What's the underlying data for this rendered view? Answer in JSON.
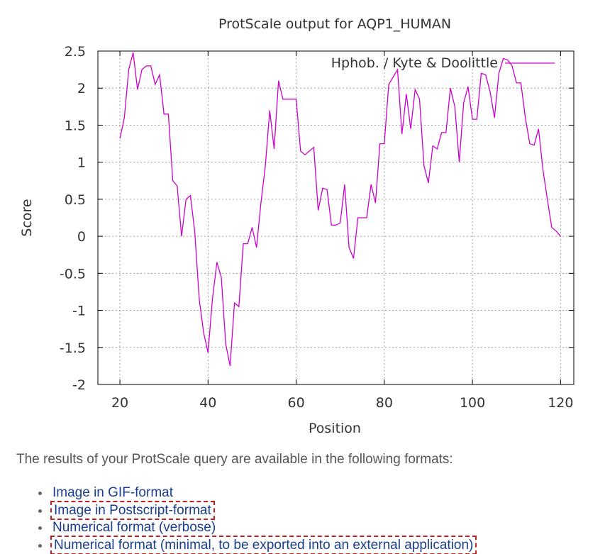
{
  "results": {
    "intro": "The results of your ProtScale query are available in the following formats:",
    "formats": [
      {
        "label": "Image in GIF-format",
        "highlighted": false
      },
      {
        "label": "Image in Postscript-format",
        "highlighted": true
      },
      {
        "label": "Numerical format (verbose)",
        "highlighted": false
      },
      {
        "label": "Numerical format (minimal, to be exported into an external application)",
        "highlighted": true
      }
    ]
  },
  "colors": {
    "line": "#cc00cc",
    "highlight_box": "#c41e1e",
    "link": "#1a3d8f"
  },
  "chart_data": {
    "type": "line",
    "title": "ProtScale output for AQP1_HUMAN",
    "xlabel": "Position",
    "ylabel": "Score",
    "xlim": [
      15,
      123
    ],
    "ylim": [
      -2,
      2.5
    ],
    "xticks": [
      20,
      40,
      60,
      80,
      100,
      120
    ],
    "yticks": [
      -2,
      -1.5,
      -1,
      -0.5,
      0,
      0.5,
      1,
      1.5,
      2,
      2.5
    ],
    "grid": true,
    "legend_position": "top-right",
    "series": [
      {
        "name": "Hphob. / Kyte & Doolittle",
        "color": "#cc00cc",
        "x": [
          20,
          21,
          22,
          23,
          24,
          25,
          26,
          27,
          28,
          29,
          30,
          31,
          32,
          33,
          34,
          35,
          36,
          37,
          38,
          39,
          40,
          41,
          42,
          43,
          44,
          45,
          46,
          47,
          48,
          49,
          50,
          51,
          52,
          53,
          54,
          55,
          56,
          57,
          58,
          59,
          60,
          61,
          62,
          63,
          64,
          65,
          66,
          67,
          68,
          69,
          70,
          71,
          72,
          73,
          74,
          75,
          76,
          77,
          78,
          79,
          80,
          81,
          82,
          83,
          84,
          85,
          86,
          87,
          88,
          89,
          90,
          91,
          92,
          93,
          94,
          95,
          96,
          97,
          98,
          99,
          100,
          101,
          102,
          103,
          104,
          105,
          106,
          107,
          108,
          109,
          110,
          111,
          112,
          113,
          114,
          115,
          116,
          117,
          118,
          119,
          120
        ],
        "y": [
          1.32,
          1.6,
          2.25,
          2.48,
          1.98,
          2.25,
          2.3,
          2.3,
          2.05,
          2.18,
          1.65,
          1.65,
          0.75,
          0.68,
          0.0,
          0.5,
          0.55,
          0.05,
          -0.85,
          -1.3,
          -1.57,
          -0.85,
          -0.35,
          -0.55,
          -1.45,
          -1.75,
          -0.9,
          -0.95,
          -0.1,
          -0.1,
          0.12,
          -0.15,
          0.45,
          0.95,
          1.7,
          1.18,
          2.1,
          1.85,
          1.85,
          1.85,
          1.85,
          1.15,
          1.1,
          1.15,
          1.2,
          0.35,
          0.65,
          0.63,
          0.15,
          0.15,
          0.18,
          0.7,
          -0.15,
          -0.3,
          0.25,
          0.25,
          0.25,
          0.7,
          0.45,
          1.25,
          1.25,
          2.05,
          2.15,
          2.25,
          1.38,
          1.92,
          1.45,
          1.98,
          1.85,
          0.95,
          0.72,
          1.22,
          1.18,
          1.4,
          1.4,
          2.0,
          1.75,
          1.0,
          1.8,
          2.02,
          1.58,
          1.58,
          2.2,
          2.18,
          1.95,
          1.6,
          2.2,
          2.4,
          2.38,
          2.3,
          2.07,
          2.07,
          1.6,
          1.25,
          1.23,
          1.45,
          0.9,
          0.5,
          0.12,
          0.07,
          0.0
        ]
      }
    ]
  }
}
